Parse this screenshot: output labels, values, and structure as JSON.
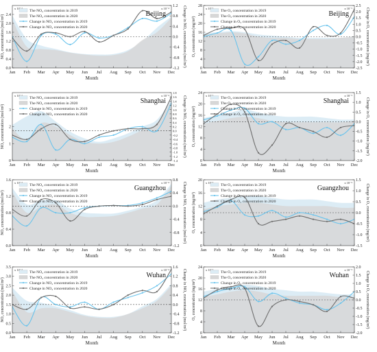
{
  "months": [
    "Jan",
    "Feb",
    "Mar",
    "Apr",
    "May",
    "Jun",
    "Jul",
    "Aug",
    "Sep",
    "Oct",
    "Nov",
    "Dec"
  ],
  "month_label": "Month",
  "colors": {
    "fill2019": "#dcecf5",
    "fill2020": "#d7d7d7",
    "change2019": "#69c3ec",
    "change2020": "#6e6e6e",
    "zero_line": "#444444",
    "axis": "#333333"
  },
  "chart_data": [
    {
      "type": "area",
      "city": "Beijing",
      "pollutant": "NO2",
      "legend": [
        "The NO₂ concentration in 2019",
        "The NO₂ concentration in 2020",
        "Change in NO₂ concentration in 2019",
        "Change in NO₂ concentration in 2020"
      ],
      "ylabel": "NO₂ concentration (mol/m²)",
      "y2label": "Change in NO₂ concentration (mol/m²)",
      "yexp": "x 10⁻⁴",
      "y2exp": "x 10⁻⁴",
      "ylim": [
        0,
        2.8
      ],
      "yticks": [
        "0.0",
        "0.4",
        "0.8",
        "1.2",
        "1.6",
        "2.0",
        "2.4"
      ],
      "y2lim": [
        -1.2,
        1.2
      ],
      "y2ticks": [
        "-1.2",
        "-0.8",
        "-0.4",
        "0.0",
        "0.4",
        "0.8",
        "1.2"
      ],
      "series": [
        {
          "name": "The NO₂ concentration in 2019",
          "values": [
            2.35,
            1.3,
            1.0,
            0.85,
            0.7,
            0.62,
            0.6,
            0.62,
            0.8,
            1.2,
            1.8,
            2.3
          ]
        },
        {
          "name": "The NO₂ concentration in 2020",
          "values": [
            2.15,
            0.95,
            0.85,
            0.8,
            0.68,
            0.6,
            0.55,
            0.58,
            0.75,
            1.25,
            1.6,
            2.25
          ]
        },
        {
          "name": "Change in NO₂ concentration in 2019",
          "values": [
            0.0,
            -0.95,
            0.05,
            0.1,
            -0.3,
            0.15,
            -0.05,
            0.05,
            0.35,
            0.7,
            0.6,
            0.9
          ]
        },
        {
          "name": "Change in NO₂ concentration in 2020",
          "values": [
            -0.05,
            -0.55,
            0.1,
            0.15,
            0.0,
            0.2,
            -0.2,
            0.05,
            0.3,
            1.0,
            0.7,
            0.95
          ]
        }
      ]
    },
    {
      "type": "area",
      "city": "Beijing",
      "pollutant": "O3",
      "legend": [
        "The O₃ concentration in 2019",
        "The O₃ concentration in 2020",
        "Change in O₃ concentration in 2019",
        "Change in O₃ concentration in 2020"
      ],
      "ylabel": "O₃ concentration (mg/m³)",
      "y2label": "Change in O₃ concentration (mg/m³)",
      "yexp": "x 10⁻¹",
      "y2exp": "x 10⁻³",
      "ylim": [
        0,
        28
      ],
      "yticks": [
        "0",
        "4",
        "8",
        "12",
        "16",
        "20",
        "24",
        "28"
      ],
      "y2lim": [
        -2.5,
        2.5
      ],
      "y2ticks": [
        "-2.5",
        "-2.0",
        "-1.5",
        "-1.0",
        "-0.5",
        "0.0",
        "0.5",
        "1.0",
        "1.5",
        "2.0",
        "2.5"
      ],
      "series": [
        {
          "name": "The O₃ concentration in 2019",
          "values": [
            15.5,
            16,
            16.5,
            16,
            15,
            14.5,
            14,
            13.5,
            13.5,
            13.5,
            13.5,
            14
          ]
        },
        {
          "name": "The O₃ concentration in 2020",
          "values": [
            15,
            15.5,
            16,
            15.5,
            14,
            13.5,
            13.5,
            13,
            13,
            13,
            13.5,
            14
          ]
        },
        {
          "name": "Change in O₃ concentration in 2019",
          "values": [
            0.0,
            0.3,
            0.5,
            -2.2,
            -1.6,
            -0.3,
            -0.6,
            -0.3,
            0.5,
            0.9,
            0.2,
            1.6
          ]
        },
        {
          "name": "Change in O₃ concentration in 2020",
          "values": [
            0.1,
            0.6,
            0.7,
            0.6,
            -1.9,
            -0.6,
            -0.3,
            -0.9,
            0.8,
            0.1,
            0.3,
            2.2
          ]
        }
      ]
    },
    {
      "type": "area",
      "city": "Shanghai",
      "pollutant": "NO2",
      "legend": [
        "The NO₂ concentration in 2019",
        "The NO₂ concentration in 2020",
        "Change in NO₂ concentration in 2019",
        "Change in NO₂ concentration in 2020"
      ],
      "ylabel": "NO₂ concentration (mol/m²)",
      "y2label": "Change in NO₂ concentration (mol/m²)",
      "yexp": "x 10⁻⁴",
      "y2exp": "x 10⁻⁴",
      "ylim": [
        0,
        4
      ],
      "yticks": [
        "0",
        "1",
        "2",
        "3"
      ],
      "y2lim": [
        -1.4,
        1.8
      ],
      "y2ticks": [
        "-1.4",
        "-1.2",
        "-1.0",
        "-0.8",
        "-0.6",
        "-0.4",
        "-0.2",
        "0.0",
        "0.2",
        "0.4",
        "0.6",
        "0.8",
        "1.0",
        "1.2",
        "1.4",
        "1.6",
        "1.8"
      ],
      "series": [
        {
          "name": "The NO₂ concentration in 2019",
          "values": [
            2.1,
            2.6,
            2.9,
            2.3,
            1.7,
            1.3,
            1.1,
            1.3,
            1.6,
            2.0,
            2.4,
            3.6
          ]
        },
        {
          "name": "The NO₂ concentration in 2020",
          "values": [
            1.9,
            1.2,
            2.2,
            2.0,
            1.5,
            1.1,
            1.0,
            1.1,
            1.4,
            1.8,
            2.2,
            3.5
          ]
        },
        {
          "name": "Change in NO₂ concentration in 2019",
          "values": [
            -0.3,
            -0.5,
            0.3,
            -0.9,
            -0.4,
            -0.6,
            -0.3,
            -0.2,
            0.1,
            0.2,
            0.0,
            1.3
          ]
        },
        {
          "name": "Change in NO₂ concentration in 2020",
          "values": [
            -0.2,
            -0.4,
            0.1,
            0.3,
            -0.4,
            -0.5,
            -0.2,
            0.0,
            0.1,
            0.1,
            0.3,
            1.6
          ]
        }
      ]
    },
    {
      "type": "area",
      "city": "Shanghai",
      "pollutant": "O3",
      "legend": [
        "The O₃ concentration in 2019",
        "The O₃ concentration in 2020",
        "Change in O₃ concentration in 2019",
        "Change in O₃ concentration in 2020"
      ],
      "ylabel": "O₃ concentration (mg/m³)",
      "y2label": "Change in O₃ concentration (mg/m³)",
      "yexp": "x 10⁻¹",
      "y2exp": "x 10⁻³",
      "ylim": [
        0,
        24
      ],
      "yticks": [
        "0",
        "4",
        "8",
        "12",
        "16",
        "20",
        "24"
      ],
      "y2lim": [
        -2.0,
        1.5
      ],
      "y2ticks": [
        "-2.0",
        "-1.5",
        "-1.0",
        "-0.5",
        "0.0",
        "0.5",
        "1.0",
        "1.5"
      ],
      "series": [
        {
          "name": "The O₃ concentration in 2019",
          "values": [
            15,
            16,
            17,
            18,
            17,
            16,
            15.5,
            15.5,
            15.5,
            15,
            14.5,
            14.5
          ]
        },
        {
          "name": "The O₃ concentration in 2020",
          "values": [
            13,
            14,
            15,
            15.5,
            15,
            14,
            13.5,
            13.5,
            13.5,
            13.5,
            13.5,
            14
          ]
        },
        {
          "name": "Change in O₃ concentration in 2019",
          "values": [
            0.1,
            0.3,
            0.6,
            0.7,
            -0.1,
            0.0,
            -0.4,
            -0.3,
            -0.6,
            -0.3,
            -0.7,
            -0.1
          ]
        },
        {
          "name": "Change in O₃ concentration in 2020",
          "values": [
            -0.1,
            0.4,
            0.9,
            0.5,
            -1.6,
            -1.2,
            -0.1,
            -0.3,
            -0.5,
            -0.8,
            -0.3,
            -0.2
          ]
        }
      ]
    },
    {
      "type": "area",
      "city": "Guangzhou",
      "pollutant": "NO2",
      "legend": [
        "The NO₂ concentration in 2019",
        "The NO₂ concentration in 2020",
        "Change in NO₂ concentration in 2019",
        "Change in NO₂ concentration in 2020"
      ],
      "ylabel": "NO₂ concentration (mol/m²)",
      "y2label": "Change in NO₂ concentration (mol/m²)",
      "yexp": "x 10⁻⁴",
      "y2exp": "x 10⁻⁴",
      "ylim": [
        0,
        1.6
      ],
      "yticks": [
        "0.0",
        "0.4",
        "0.8",
        "1.2",
        "1.6"
      ],
      "y2lim": [
        -1.2,
        0.8
      ],
      "y2ticks": [
        "-1.2",
        "-0.8",
        "-0.4",
        "0.0",
        "0.4",
        "0.8"
      ],
      "series": [
        {
          "name": "The NO₂ concentration in 2019",
          "values": [
            1.4,
            1.0,
            1.1,
            1.1,
            0.9,
            0.8,
            0.78,
            0.78,
            0.85,
            0.95,
            1.1,
            1.5
          ]
        },
        {
          "name": "The NO₂ concentration in 2020",
          "values": [
            1.3,
            0.8,
            0.95,
            1.0,
            0.8,
            0.7,
            0.7,
            0.72,
            0.8,
            0.9,
            1.0,
            1.45
          ]
        },
        {
          "name": "Change in NO₂ concentration in 2019",
          "values": [
            -0.3,
            -0.6,
            -0.05,
            -0.2,
            -0.2,
            -0.05,
            0.0,
            0.02,
            0.02,
            0.1,
            0.25,
            0.45
          ]
        },
        {
          "name": "Change in NO₂ concentration in 2020",
          "values": [
            -0.1,
            -0.3,
            0.2,
            0.1,
            -0.45,
            -0.1,
            0.0,
            0.02,
            0.0,
            0.05,
            0.2,
            0.3
          ]
        }
      ]
    },
    {
      "type": "area",
      "city": "Guangzhou",
      "pollutant": "O3",
      "legend": [
        "The O₃ concentration in 2019",
        "The O₃ concentration in 2020",
        "Change in O₃ concentration in 2019",
        "Change in O₃ concentration in 2020"
      ],
      "ylabel": "O₃ concentration (mg/m³)",
      "y2label": "Change in O₃ concentration (mg/m³)",
      "yexp": "x 10⁻¹",
      "y2exp": "x 10⁻³",
      "ylim": [
        0,
        20
      ],
      "yticks": [
        "0",
        "4",
        "8",
        "12",
        "16",
        "20"
      ],
      "y2lim": [
        -1.5,
        1.5
      ],
      "y2ticks": [
        "-1.5",
        "-1.0",
        "-0.5",
        "0.0",
        "0.5",
        "1.0",
        "1.5"
      ],
      "series": [
        {
          "name": "The O₃ concentration in 2019",
          "values": [
            13,
            14,
            14.5,
            15,
            15,
            14.5,
            14,
            14,
            14,
            13.5,
            13,
            13
          ]
        },
        {
          "name": "The O₃ concentration in 2020",
          "values": [
            11,
            12,
            12.5,
            13,
            13,
            12.5,
            12,
            12,
            12,
            12,
            11.5,
            11.5
          ]
        },
        {
          "name": "Change in O₃ concentration in 2019",
          "values": [
            0.05,
            0.25,
            0.55,
            -0.1,
            -0.15,
            0.1,
            -0.2,
            0.0,
            -0.1,
            -0.3,
            -0.5,
            -0.3
          ]
        },
        {
          "name": "Change in O₃ concentration in 2020",
          "values": [
            -0.05,
            0.3,
            0.6,
            0.7,
            -0.5,
            -0.4,
            -0.3,
            -0.15,
            -0.3,
            -0.4,
            -0.3,
            -0.5
          ]
        }
      ]
    },
    {
      "type": "area",
      "city": "Wuhan",
      "pollutant": "NO2",
      "legend": [
        "The NO₂ concentration in 2019",
        "The NO₂ concentration in 2020",
        "Change in NO₂ concentration in 2019",
        "Change in NO₂ concentration in 2020"
      ],
      "ylabel": "NO₂ concentration (mol/m²)",
      "y2label": "Change in NO₂ concentration (mol/m²)",
      "yexp": "x 10⁻⁴",
      "y2exp": "x 10⁻⁴",
      "ylim": [
        0,
        3.5
      ],
      "yticks": [
        "0.0",
        "0.5",
        "1.0",
        "1.5",
        "2.0",
        "2.5",
        "3.0",
        "3.5"
      ],
      "y2lim": [
        -1.2,
        1.6
      ],
      "y2ticks": [
        "-1.2",
        "-0.8",
        "-0.4",
        "0.0",
        "0.4",
        "0.8",
        "1.2",
        "1.6"
      ],
      "series": [
        {
          "name": "The NO₂ concentration in 2019",
          "values": [
            2.4,
            1.7,
            1.6,
            1.4,
            1.2,
            0.95,
            0.85,
            0.85,
            1.0,
            1.4,
            1.8,
            2.6
          ]
        },
        {
          "name": "The NO₂ concentration in 2020",
          "values": [
            2.2,
            1.1,
            1.3,
            1.3,
            1.1,
            0.9,
            0.8,
            0.8,
            1.0,
            1.3,
            1.7,
            2.5
          ]
        },
        {
          "name": "Change in NO₂ concentration in 2019",
          "values": [
            -0.1,
            -0.9,
            0.3,
            0.0,
            -0.1,
            0.1,
            -0.2,
            0.1,
            0.3,
            0.5,
            0.8,
            1.3
          ]
        },
        {
          "name": "Change in NO₂ concentration in 2020",
          "values": [
            0.0,
            -0.2,
            0.3,
            0.35,
            -0.15,
            -0.1,
            -0.2,
            0.0,
            0.4,
            0.6,
            0.55,
            1.5
          ]
        }
      ]
    },
    {
      "type": "area",
      "city": "Wuhan",
      "pollutant": "O3",
      "legend": [
        "The O₃ concentration in 2019",
        "The O₃ concentration in 2020",
        "Change in O₃ concentration in 2019",
        "Change in O₃ concentration in 2020"
      ],
      "ylabel": "O₃ concentration (mg/m³)",
      "y2label": "Change in O₃ concentration (mg/m³)",
      "yexp": "x 10⁻¹",
      "y2exp": "x 10⁻³",
      "ylim": [
        0,
        24
      ],
      "yticks": [
        "0",
        "4",
        "8",
        "12",
        "16",
        "20",
        "24"
      ],
      "y2lim": [
        -2.0,
        2.0
      ],
      "y2ticks": [
        "-2.0",
        "-1.5",
        "-1.0",
        "-0.5",
        "0.0",
        "0.5",
        "1.0",
        "1.5",
        "2.0"
      ],
      "series": [
        {
          "name": "The O₃ concentration in 2019",
          "values": [
            15,
            16,
            17,
            17.5,
            17,
            16,
            15.5,
            15,
            15,
            14.5,
            14,
            14
          ]
        },
        {
          "name": "The O₃ concentration in 2020",
          "values": [
            13,
            14,
            15,
            15.5,
            15,
            14,
            13.5,
            13.5,
            13.5,
            13.5,
            13,
            13
          ]
        },
        {
          "name": "Change in O₃ concentration in 2019",
          "values": [
            0.2,
            0.5,
            0.7,
            0.8,
            -0.1,
            0.4,
            0.1,
            -0.2,
            -0.3,
            -0.6,
            -0.2,
            0.5
          ]
        },
        {
          "name": "Change in O₃ concentration in 2020",
          "values": [
            0.1,
            0.6,
            0.8,
            0.7,
            -1.6,
            -0.4,
            0.0,
            -0.1,
            -0.3,
            -0.7,
            0.2,
            0.1
          ]
        }
      ]
    }
  ]
}
